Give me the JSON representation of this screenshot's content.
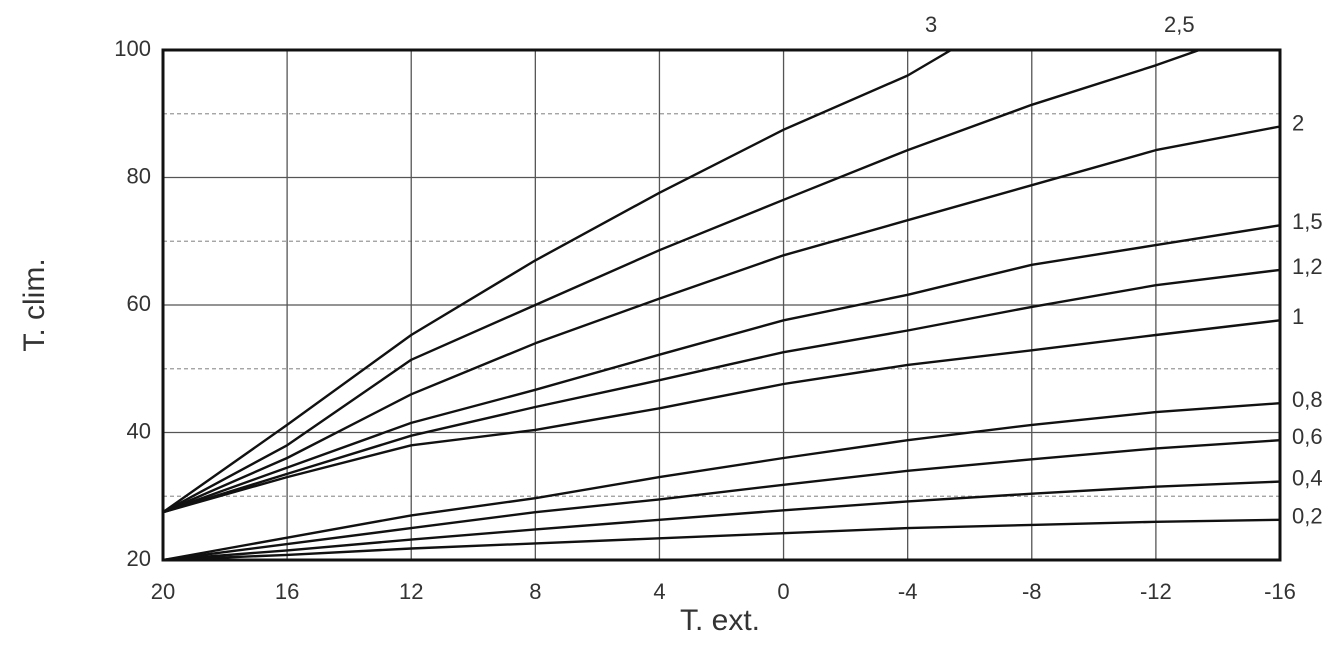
{
  "chart_data": {
    "type": "line",
    "x_label": "T. ext.",
    "y_label": "T. clim.",
    "xlim": [
      20,
      -16
    ],
    "xticks": [
      20,
      16,
      12,
      8,
      4,
      0,
      -4,
      -8,
      -12,
      -16
    ],
    "ylim": [
      20,
      100
    ],
    "yticks": [
      20,
      40,
      60,
      80,
      100
    ],
    "minor_yticks": [
      30,
      50,
      70,
      90
    ],
    "grid": true,
    "color": "#111111",
    "series": [
      {
        "name": "3",
        "x": [
          20,
          16,
          12,
          8,
          4,
          0,
          -4,
          -5.4
        ],
        "values": [
          27.5,
          41.2,
          55.3,
          67,
          77.6,
          87.5,
          96,
          100
        ]
      },
      {
        "name": "2,5",
        "x": [
          20,
          16,
          12,
          8,
          4,
          0,
          -4,
          -8,
          -12,
          -13.4
        ],
        "values": [
          27.5,
          38,
          51.4,
          60,
          68.6,
          76.5,
          84.3,
          91.4,
          97.6,
          100
        ]
      },
      {
        "name": "2",
        "x": [
          20,
          16,
          12,
          8,
          4,
          0,
          -4,
          -8,
          -12,
          -16
        ],
        "values": [
          27.5,
          36,
          46,
          54,
          61,
          67.8,
          73.3,
          78.8,
          84.3,
          88
        ]
      },
      {
        "name": "1,5",
        "x": [
          20,
          16,
          12,
          8,
          4,
          0,
          -4,
          -8,
          -12,
          -16
        ],
        "values": [
          27.5,
          34.5,
          41.5,
          46.7,
          52.2,
          57.6,
          61.6,
          66.3,
          69.4,
          72.5
        ]
      },
      {
        "name": "1,2",
        "x": [
          20,
          16,
          12,
          8,
          4,
          0,
          -4,
          -8,
          -12,
          -16
        ],
        "values": [
          27.5,
          33.5,
          39.5,
          44,
          48.2,
          52.6,
          56,
          59.7,
          63.1,
          65.5
        ]
      },
      {
        "name": "1",
        "x": [
          20,
          16,
          12,
          8,
          4,
          0,
          -4,
          -8,
          -12,
          -16
        ],
        "values": [
          27.5,
          33,
          38,
          40.4,
          43.8,
          47.6,
          50.6,
          52.9,
          55.3,
          57.6
        ]
      },
      {
        "name": "0,8",
        "x": [
          20,
          16,
          12,
          8,
          4,
          0,
          -4,
          -8,
          -12,
          -16
        ],
        "values": [
          20,
          23.5,
          27,
          29.7,
          33,
          36,
          38.8,
          41.2,
          43.2,
          44.6
        ]
      },
      {
        "name": "0,6",
        "x": [
          20,
          16,
          12,
          8,
          4,
          0,
          -4,
          -8,
          -12,
          -16
        ],
        "values": [
          20,
          22.5,
          25,
          27.5,
          29.5,
          31.8,
          34,
          35.8,
          37.5,
          38.8
        ]
      },
      {
        "name": "0,4",
        "x": [
          20,
          16,
          12,
          8,
          4,
          0,
          -4,
          -8,
          -12,
          -16
        ],
        "values": [
          20,
          21.5,
          23.2,
          24.8,
          26.3,
          27.8,
          29.2,
          30.4,
          31.5,
          32.3
        ]
      },
      {
        "name": "0,2",
        "x": [
          20,
          16,
          12,
          8,
          4,
          0,
          -4,
          -8,
          -12,
          -16
        ],
        "values": [
          20,
          20.8,
          21.8,
          22.6,
          23.4,
          24.2,
          25,
          25.5,
          26,
          26.3
        ]
      }
    ]
  }
}
